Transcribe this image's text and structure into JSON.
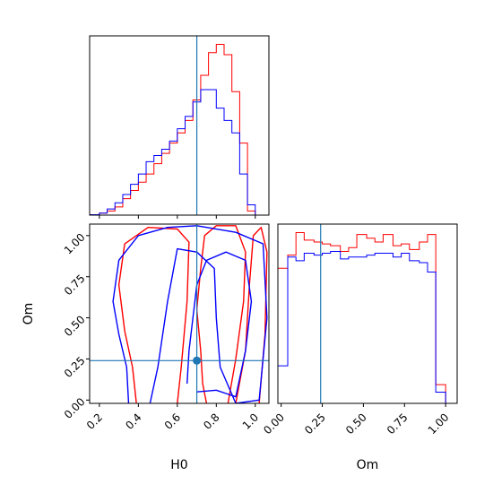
{
  "colors": {
    "red": "#ff0000",
    "blue": "#0000ff",
    "truth": "#1f77b4",
    "frame": "#000000"
  },
  "chart_data": {
    "type": "corner",
    "parameters": [
      "H0",
      "Om"
    ],
    "truth": {
      "H0": 0.7,
      "Om": 0.24
    },
    "xlabels": {
      "H0": "H0",
      "Om": "Om"
    },
    "ylabel": "Om",
    "axis_ranges": {
      "H0": [
        0.15,
        1.07
      ],
      "Om": [
        -0.02,
        1.07
      ]
    },
    "ticks": {
      "H0": [
        "0.2",
        "0.4",
        "0.6",
        "0.8",
        "1.0"
      ],
      "Om": [
        "0.00",
        "0.25",
        "0.50",
        "0.75",
        "1.00"
      ]
    },
    "histograms": {
      "H0": {
        "bin_edges": [
          0.15,
          0.2,
          0.24,
          0.28,
          0.32,
          0.36,
          0.4,
          0.44,
          0.48,
          0.52,
          0.56,
          0.6,
          0.64,
          0.68,
          0.72,
          0.76,
          0.8,
          0.84,
          0.88,
          0.92,
          0.96,
          1.0
        ],
        "series": [
          {
            "color": "red",
            "counts": [
              0.002,
              0.01,
              0.02,
              0.04,
              0.08,
              0.12,
              0.16,
              0.2,
              0.25,
              0.3,
              0.35,
              0.4,
              0.46,
              0.56,
              0.68,
              0.79,
              0.83,
              0.78,
              0.6,
              0.35,
              0.02
            ]
          },
          {
            "color": "blue",
            "counts": [
              0.002,
              0.01,
              0.03,
              0.06,
              0.1,
              0.15,
              0.2,
              0.26,
              0.29,
              0.32,
              0.36,
              0.42,
              0.48,
              0.55,
              0.61,
              0.61,
              0.52,
              0.46,
              0.4,
              0.2,
              0.05
            ]
          }
        ]
      },
      "Om": {
        "bin_edges": [
          -0.02,
          0.04,
          0.09,
          0.14,
          0.2,
          0.25,
          0.3,
          0.36,
          0.41,
          0.46,
          0.52,
          0.57,
          0.62,
          0.68,
          0.73,
          0.78,
          0.84,
          0.89,
          0.94,
          1.0
        ],
        "series": [
          {
            "color": "red",
            "counts": [
              0.72,
              0.79,
              0.91,
              0.87,
              0.86,
              0.85,
              0.84,
              0.81,
              0.83,
              0.9,
              0.88,
              0.86,
              0.9,
              0.84,
              0.85,
              0.82,
              0.86,
              0.9,
              0.1
            ]
          },
          {
            "color": "blue",
            "counts": [
              0.2,
              0.78,
              0.76,
              0.8,
              0.79,
              0.8,
              0.81,
              0.77,
              0.78,
              0.78,
              0.79,
              0.8,
              0.8,
              0.78,
              0.8,
              0.76,
              0.75,
              0.7,
              0.06
            ]
          }
        ]
      }
    },
    "contours": [
      {
        "color": "red",
        "path": [
          [
            0.75,
            -0.02
          ],
          [
            0.73,
            0.1
          ],
          [
            0.72,
            0.3
          ],
          [
            0.7,
            0.55
          ],
          [
            0.72,
            0.8
          ],
          [
            0.74,
            1.0
          ],
          [
            0.8,
            1.06
          ],
          [
            0.9,
            1.06
          ],
          [
            0.95,
            0.9
          ],
          [
            0.94,
            0.6
          ],
          [
            0.9,
            0.25
          ],
          [
            0.86,
            -0.02
          ]
        ]
      },
      {
        "color": "red",
        "path": [
          [
            0.39,
            -0.02
          ],
          [
            0.37,
            0.2
          ],
          [
            0.33,
            0.42
          ],
          [
            0.3,
            0.7
          ],
          [
            0.33,
            0.95
          ],
          [
            0.45,
            1.05
          ],
          [
            0.6,
            1.04
          ],
          [
            0.66,
            0.96
          ],
          [
            0.65,
            0.6
          ],
          [
            0.62,
            0.2
          ],
          [
            0.6,
            -0.02
          ]
        ]
      },
      {
        "color": "red",
        "path": [
          [
            0.9,
            -0.02
          ],
          [
            0.95,
            0.3
          ],
          [
            0.97,
            0.7
          ],
          [
            0.99,
            1.0
          ],
          [
            1.03,
            1.05
          ],
          [
            1.06,
            0.9
          ],
          [
            1.05,
            0.4
          ],
          [
            1.02,
            -0.02
          ]
        ]
      },
      {
        "color": "blue",
        "path": [
          [
            0.35,
            -0.02
          ],
          [
            0.34,
            0.2
          ],
          [
            0.3,
            0.4
          ],
          [
            0.27,
            0.6
          ],
          [
            0.3,
            0.85
          ],
          [
            0.4,
            1.0
          ],
          [
            0.55,
            1.05
          ],
          [
            0.7,
            1.06
          ],
          [
            0.9,
            1.02
          ],
          [
            1.04,
            0.95
          ],
          [
            1.06,
            0.5
          ],
          [
            1.02,
            0.0
          ],
          [
            0.9,
            -0.02
          ],
          [
            0.82,
            0.2
          ],
          [
            0.8,
            0.5
          ],
          [
            0.79,
            0.8
          ],
          [
            0.7,
            0.9
          ],
          [
            0.6,
            0.92
          ],
          [
            0.55,
            0.6
          ],
          [
            0.5,
            0.2
          ],
          [
            0.46,
            -0.02
          ]
        ]
      },
      {
        "color": "blue",
        "path": [
          [
            0.65,
            0.1
          ],
          [
            0.66,
            0.3
          ],
          [
            0.68,
            0.5
          ],
          [
            0.7,
            0.7
          ],
          [
            0.75,
            0.85
          ],
          [
            0.85,
            0.9
          ],
          [
            0.95,
            0.85
          ],
          [
            0.98,
            0.6
          ],
          [
            0.95,
            0.3
          ],
          [
            0.9,
            0.02
          ],
          [
            0.8,
            0.06
          ],
          [
            0.7,
            0.05
          ]
        ]
      }
    ]
  }
}
